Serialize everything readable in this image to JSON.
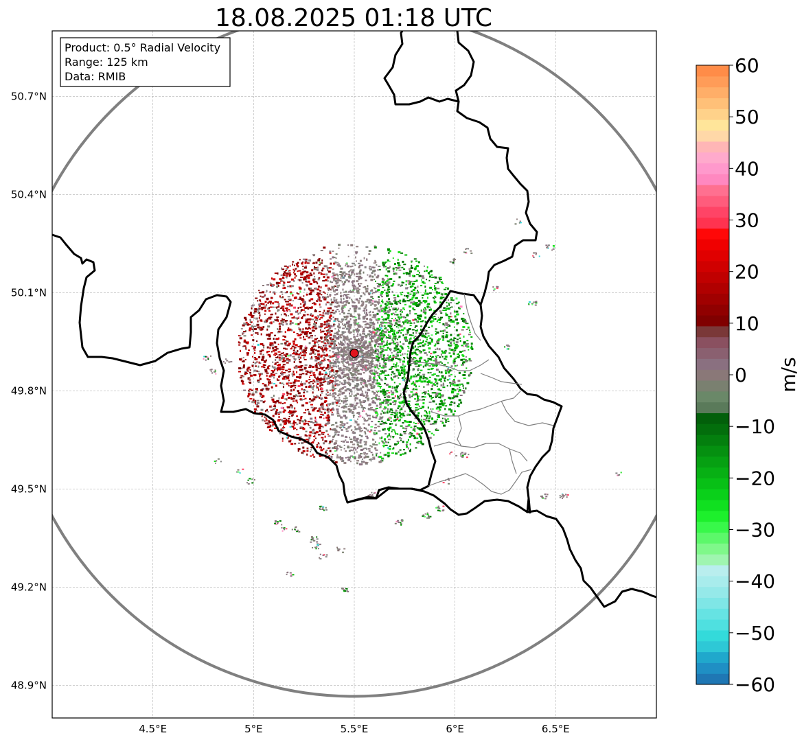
{
  "title": "18.08.2025 01:18 UTC",
  "info": {
    "product": "Product: 0.5° Radial Velocity",
    "range": "Range: 125 km",
    "data": "Data: RMIB"
  },
  "axes": {
    "lat_labels": [
      "48.9°N",
      "49.2°N",
      "49.5°N",
      "49.8°N",
      "50.1°N",
      "50.4°N",
      "50.7°N"
    ],
    "lon_labels": [
      "4.5°E",
      "5°E",
      "5.5°E",
      "6°E",
      "6.5°E"
    ],
    "lat_values": [
      48.9,
      49.2,
      49.5,
      49.8,
      50.1,
      50.4,
      50.7
    ],
    "lon_values": [
      4.5,
      5.0,
      5.5,
      6.0,
      6.5
    ],
    "lon_range": [
      4.0,
      7.0
    ],
    "lat_range": [
      48.8,
      50.9
    ]
  },
  "radar": {
    "lon": 5.5,
    "lat": 49.915,
    "range_km": 125
  },
  "colorbar": {
    "label": "m/s",
    "min": -60,
    "max": 60,
    "tick_labels": [
      "60",
      "50",
      "40",
      "30",
      "20",
      "10",
      "0",
      "−10",
      "−20",
      "−30",
      "−40",
      "−50",
      "−60"
    ],
    "tick_values": [
      60,
      50,
      40,
      30,
      20,
      10,
      0,
      -10,
      -20,
      -30,
      -40,
      -50,
      -60
    ],
    "colors": [
      "#1f77b4",
      "#1f8fc4",
      "#20a8cc",
      "#2ec8d6",
      "#33dada",
      "#4fe0e0",
      "#66e3e3",
      "#7fe6e6",
      "#95e9e9",
      "#a8ecec",
      "#b9eeee",
      "#9ff5b0",
      "#7ff88a",
      "#5cf86a",
      "#38f84a",
      "#1df02c",
      "#10e020",
      "#0ad01a",
      "#08c016",
      "#07b014",
      "#06a012",
      "#059010",
      "#047f0e",
      "#036e0c",
      "#025f0a",
      "#5a7a5a",
      "#6a8868",
      "#7a8070",
      "#8a7878",
      "#8a7080",
      "#8a6070",
      "#8a5060",
      "#7a3838",
      "#800000",
      "#900000",
      "#a00000",
      "#b00000",
      "#c00000",
      "#d00000",
      "#e00000",
      "#f00000",
      "#ff0808",
      "#ff3350",
      "#ff4466",
      "#ff5c7c",
      "#ff7090",
      "#ff88c0",
      "#ff99cc",
      "#ffaacc",
      "#ffb6b6",
      "#ffd8a8",
      "#ffe59a",
      "#ffd28a",
      "#ffc078",
      "#ffae68",
      "#ff9c58",
      "#ff8c48"
    ]
  },
  "colors": {
    "range_ring": "#808080",
    "radar_marker": "#e0141e",
    "incoming": "#009000",
    "outgoing": "#a00000",
    "near_zero": "#8a7878"
  }
}
